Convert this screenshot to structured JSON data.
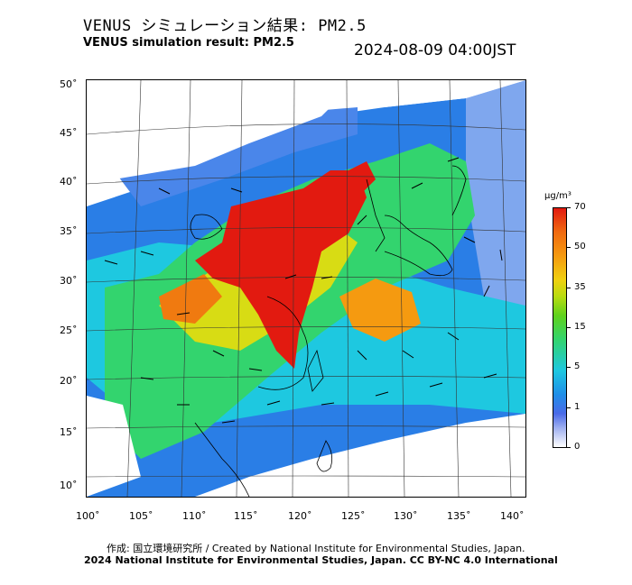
{
  "title_jp": "VENUS シミュレーション結果: PM2.5",
  "title_en": "VENUS simulation result: PM2.5",
  "timestamp": "2024-08-09 04:00JST",
  "y_ticks": [
    "50˚",
    "45˚",
    "40˚",
    "35˚",
    "30˚",
    "25˚",
    "20˚",
    "15˚",
    "10˚"
  ],
  "x_ticks": [
    "100˚",
    "105˚",
    "110˚",
    "115˚",
    "120˚",
    "125˚",
    "130˚",
    "135˚",
    "140˚"
  ],
  "colorbar": {
    "unit": "μg/m³",
    "labels": [
      "70",
      "50",
      "35",
      "15",
      "5",
      "1",
      "0"
    ]
  },
  "footer_credit": "作成: 国立環境研究所 / Created by National Institute for Environmental Studies, Japan.",
  "footer_license": "2024 National Institute for Environmental Studies, Japan. CC BY-NC 4.0 International",
  "colors": {
    "high": "#e21a10",
    "mid": "#33d46e",
    "low": "#1f8ee8",
    "none": "#ffffff"
  }
}
